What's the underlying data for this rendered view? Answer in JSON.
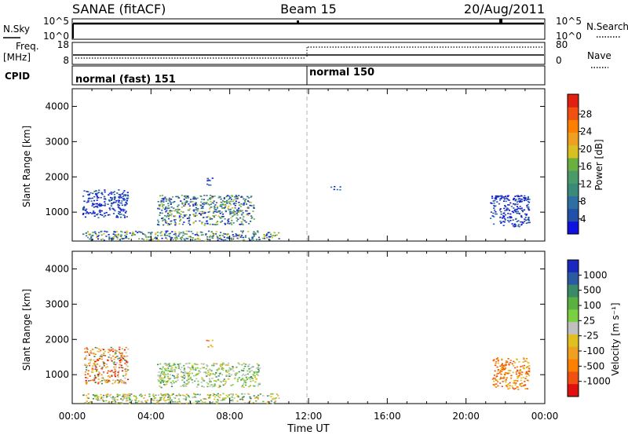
{
  "header": {
    "title": "SANAE (fitACF)",
    "beam": "Beam 15",
    "date": "20/Aug/2011"
  },
  "chart_data": [
    {
      "type": "line",
      "panel": "noise",
      "left_label": "N.Sky",
      "right_label": "N.Search",
      "left_ticks": [
        "10^5",
        "10^0"
      ],
      "right_ticks": [
        "10^5",
        "10^0"
      ]
    },
    {
      "type": "line",
      "panel": "frequency",
      "left_label_1": "Freq.",
      "left_label_2": "[MHz]",
      "right_label": "Nave",
      "left_ticks": [
        "18",
        "8"
      ],
      "right_ticks": [
        "80",
        "0"
      ],
      "freq_mhz_segments": [
        {
          "x": [
            "00:00",
            "12:00"
          ],
          "y": 11
        },
        {
          "x": [
            "12:00",
            "24:00"
          ],
          "y": 11
        }
      ],
      "nave_segments": [
        {
          "x": [
            "00:00",
            "12:00"
          ],
          "y": 18
        },
        {
          "x": [
            "12:00",
            "24:00"
          ],
          "y": 60
        }
      ]
    },
    {
      "type": "table",
      "panel": "cpid",
      "label": "CPID",
      "segments": [
        {
          "x0": 0,
          "x1": 12,
          "name": "normal (fast) 151"
        },
        {
          "x0": 12,
          "x1": 24,
          "name": "normal 150"
        }
      ]
    },
    {
      "type": "heatmap",
      "panel": "power",
      "ylabel": "Slant Range [km]",
      "ylim": [
        180,
        4500
      ],
      "yticks": [
        "1000",
        "2000",
        "3000",
        "4000"
      ],
      "xlim": [
        0,
        24
      ],
      "colorbar_label": "Power [dB]",
      "colorbar_ticks": [
        "4",
        "8",
        "12",
        "16",
        "20",
        "24",
        "28"
      ],
      "colorbar_colors": [
        "#1010e0",
        "#2050a8",
        "#2e6ea0",
        "#3a8a7a",
        "#4a9a6a",
        "#6ab040",
        "#d8c020",
        "#f0a020",
        "#ff8000",
        "#f05010",
        "#e02010"
      ],
      "scatter_regions": [
        {
          "x": [
            0.5,
            2.8
          ],
          "y": [
            850,
            1650
          ],
          "value_class": "low"
        },
        {
          "x": [
            4.3,
            9.2
          ],
          "y": [
            650,
            1500
          ],
          "value_class": "low-mid"
        },
        {
          "x": [
            6.8,
            7.1
          ],
          "y": [
            1750,
            2000
          ],
          "value_class": "low"
        },
        {
          "x": [
            13.1,
            13.6
          ],
          "y": [
            1650,
            1750
          ],
          "value_class": "low"
        },
        {
          "x": [
            21.2,
            23.2
          ],
          "y": [
            600,
            1500
          ],
          "value_class": "low"
        },
        {
          "x": [
            0.5,
            10.5
          ],
          "y": [
            200,
            480
          ],
          "value_class": "low-mid"
        }
      ]
    },
    {
      "type": "heatmap",
      "panel": "velocity",
      "ylabel": "Slant Range [km]",
      "ylim": [
        180,
        4500
      ],
      "yticks": [
        "1000",
        "2000",
        "3000",
        "4000"
      ],
      "xlim": [
        0,
        24
      ],
      "xticks": [
        "00:00",
        "04:00",
        "08:00",
        "12:00",
        "16:00",
        "20:00",
        "00:00"
      ],
      "xlabel": "Time UT",
      "colorbar_label": "Velocity  [m s⁻¹]",
      "colorbar_ticks": [
        "1000",
        "500",
        "100",
        "25",
        "-25",
        "-100",
        "-500",
        "-1000"
      ],
      "colorbar_colors": [
        "#1a28c0",
        "#2a5aa0",
        "#3a8a6a",
        "#5ab040",
        "#7ad040",
        "#c0c0c0",
        "#e0c020",
        "#f0a020",
        "#ff8000",
        "#f05010",
        "#e01010"
      ],
      "scatter_regions": [
        {
          "x": [
            0.6,
            2.8
          ],
          "y": [
            750,
            1800
          ],
          "value_class": "mixed-negative"
        },
        {
          "x": [
            4.3,
            9.5
          ],
          "y": [
            650,
            1350
          ],
          "value_class": "near-zero-positive"
        },
        {
          "x": [
            6.8,
            7.1
          ],
          "y": [
            1800,
            2000
          ],
          "value_class": "negative"
        },
        {
          "x": [
            21.3,
            23.2
          ],
          "y": [
            600,
            1500
          ],
          "value_class": "negative"
        },
        {
          "x": [
            0.5,
            10.5
          ],
          "y": [
            200,
            480
          ],
          "value_class": "mixed"
        }
      ]
    }
  ]
}
